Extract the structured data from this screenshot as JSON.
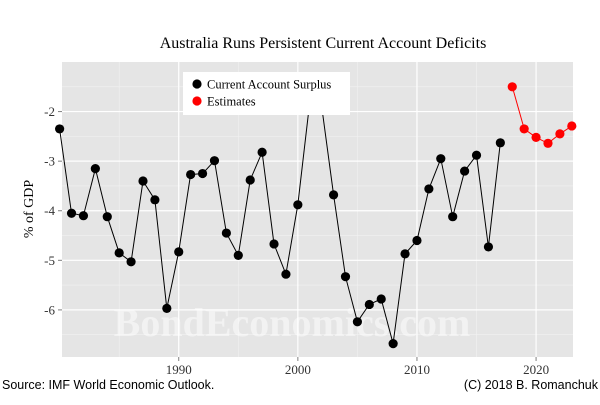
{
  "chart_data": {
    "type": "line",
    "title": "Australia Runs Persistent Current Account Deficits",
    "xlabel": "",
    "ylabel": "% of GDP",
    "xlim": [
      1980.2,
      2023.1
    ],
    "ylim": [
      -6.95,
      -1.0
    ],
    "x_ticks": [
      1990,
      2000,
      2010,
      2020
    ],
    "y_ticks": [
      -6,
      -5,
      -4,
      -3,
      -2
    ],
    "y_tick_labels": [
      "-6",
      "-5",
      "-4",
      "-3",
      "-2"
    ],
    "grid": true,
    "legend_position": "top-left",
    "series": [
      {
        "name": "Current Account Surplus",
        "color": "#000000",
        "x": [
          1980,
          1981,
          1982,
          1983,
          1984,
          1985,
          1986,
          1987,
          1988,
          1989,
          1990,
          1991,
          1992,
          1993,
          1994,
          1995,
          1996,
          1997,
          1998,
          1999,
          2000,
          2001,
          2002,
          2003,
          2004,
          2005,
          2006,
          2007,
          2008,
          2009,
          2010,
          2011,
          2012,
          2013,
          2014,
          2015,
          2016,
          2017
        ],
        "y": [
          -2.35,
          -4.05,
          -4.1,
          -3.15,
          -4.12,
          -4.85,
          -5.03,
          -3.4,
          -3.78,
          -5.97,
          -4.83,
          -3.27,
          -3.25,
          -2.99,
          -4.45,
          -4.9,
          -3.38,
          -2.82,
          -4.67,
          -5.28,
          -3.88,
          -1.8,
          -1.9,
          -3.68,
          -5.33,
          -6.24,
          -5.89,
          -5.78,
          -6.68,
          -4.87,
          -4.6,
          -3.56,
          -2.95,
          -4.12,
          -3.2,
          -2.88,
          -4.73,
          -2.63
        ]
      },
      {
        "name": "Estimates",
        "color": "#ff0000",
        "x": [
          2018,
          2019,
          2020,
          2021,
          2022,
          2023
        ],
        "y": [
          -1.5,
          -2.35,
          -2.52,
          -2.64,
          -2.45,
          -2.29
        ]
      }
    ]
  },
  "watermark": "BondEconomics.com",
  "footer": {
    "source": "Source: IMF World Economic Outlook.",
    "credit": "(C) 2018 B. Romanchuk"
  }
}
